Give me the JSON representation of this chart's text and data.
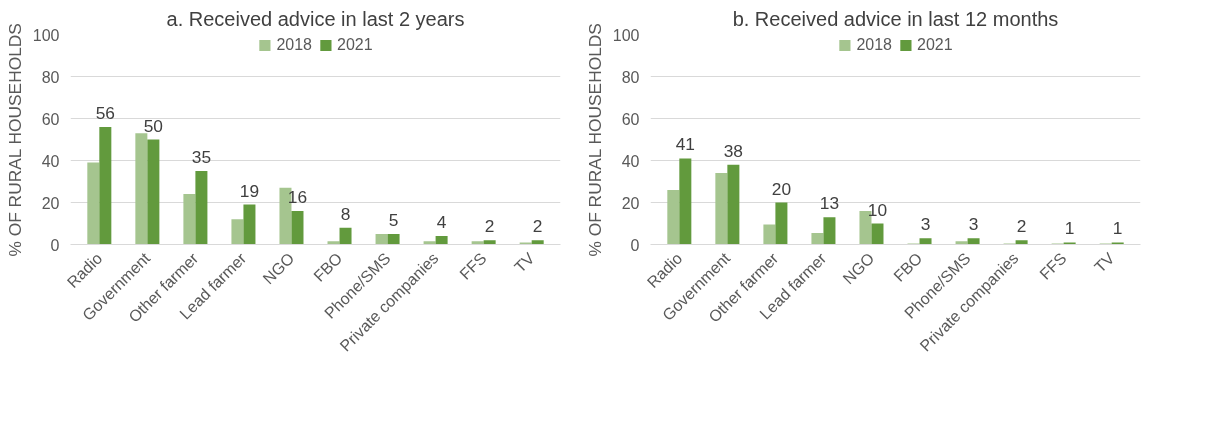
{
  "chart_data": [
    {
      "type": "bar",
      "title": "a. Received advice in last 2 years",
      "ylabel": "% OF RURAL HOUSEHOLDS",
      "categories": [
        "Radio",
        "Government",
        "Other farmer",
        "Lead farmer",
        "NGO",
        "FBO",
        "Phone/SMS",
        "Private companies",
        "FFS",
        "TV"
      ],
      "series": [
        {
          "name": "2018",
          "color": "#a5c58f",
          "values": [
            39,
            53,
            24,
            12,
            27,
            1.5,
            5,
            1.5,
            1.5,
            1
          ]
        },
        {
          "name": "2021",
          "color": "#629a3d",
          "values": [
            56,
            50,
            35,
            19,
            16,
            8,
            5,
            4,
            2,
            2
          ],
          "value_labels": [
            "56",
            "50",
            "35",
            "19",
            "16",
            "8",
            "5",
            "4",
            "2",
            "2"
          ]
        }
      ],
      "ylim": [
        0,
        100
      ],
      "yticks": [
        0,
        20,
        40,
        60,
        80,
        100
      ],
      "grid": "y",
      "legend": "top"
    },
    {
      "type": "bar",
      "title": "b. Received advice in last 12 months",
      "ylabel": "% OF RURAL HOUSEHOLDS",
      "categories": [
        "Radio",
        "Government",
        "Other farmer",
        "Lead farmer",
        "NGO",
        "FBO",
        "Phone/SMS",
        "Private companies",
        "FFS",
        "TV"
      ],
      "series": [
        {
          "name": "2018",
          "color": "#a5c58f",
          "values": [
            26,
            34,
            9.5,
            5.5,
            16,
            0.5,
            1.5,
            0.5,
            0.5,
            0.5
          ]
        },
        {
          "name": "2021",
          "color": "#629a3d",
          "values": [
            41,
            38,
            20,
            13,
            10,
            3,
            3,
            2,
            1,
            1
          ],
          "value_labels": [
            "41",
            "38",
            "20",
            "13",
            "10",
            "3",
            "3",
            "2",
            "1",
            "1"
          ]
        }
      ],
      "ylim": [
        0,
        100
      ],
      "yticks": [
        0,
        20,
        40,
        60,
        80,
        100
      ],
      "grid": "y",
      "legend": "top"
    }
  ]
}
